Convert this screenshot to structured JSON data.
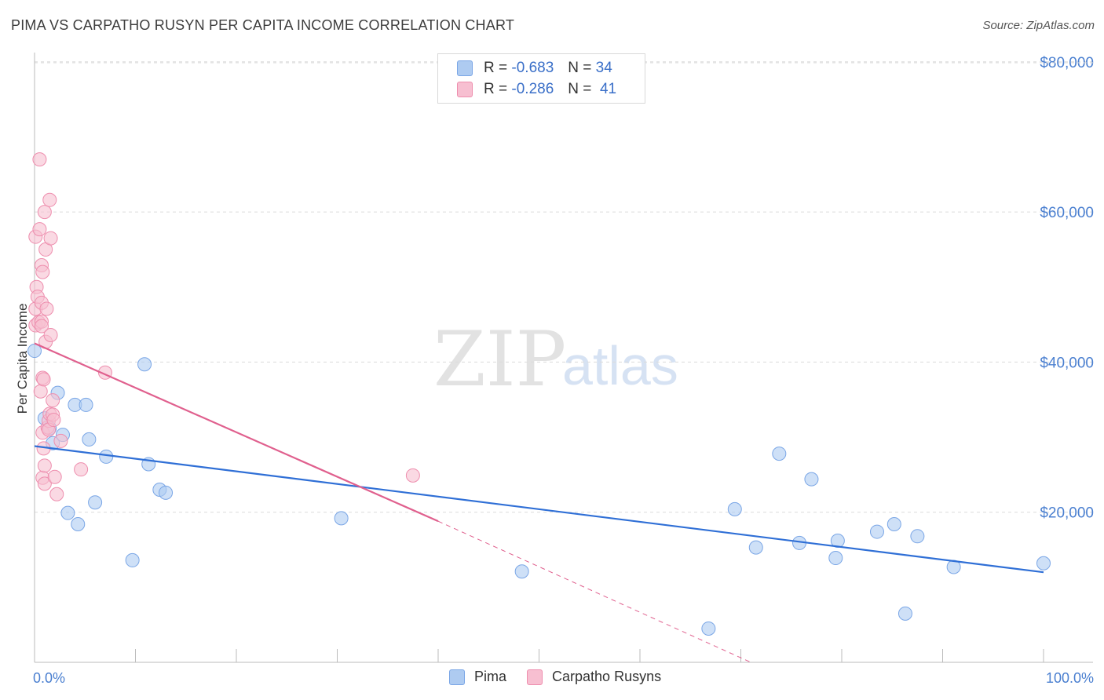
{
  "title": "PIMA VS CARPATHO RUSYN PER CAPITA INCOME CORRELATION CHART",
  "source": "Source: ZipAtlas.com",
  "watermark": {
    "zip": "ZIP",
    "atlas": "atlas"
  },
  "legend": {
    "rows": [
      {
        "r_label": "R =",
        "r_value": "-0.683",
        "n_label": "N =",
        "n_value": "34",
        "color": "#aecbf1",
        "border": "#7aa6e6"
      },
      {
        "r_label": "R =",
        "r_value": "-0.286",
        "n_label": "N =",
        "n_value": "41",
        "color": "#f7bfd1",
        "border": "#ee8eae"
      }
    ]
  },
  "bottom_legend": [
    {
      "label": "Pima",
      "color": "#aecbf1",
      "border": "#7aa6e6"
    },
    {
      "label": "Carpatho Rusyns",
      "color": "#f7bfd1",
      "border": "#ee8eae"
    }
  ],
  "chart_data": {
    "type": "scatter",
    "title": "PIMA VS CARPATHO RUSYN PER CAPITA INCOME CORRELATION CHART",
    "xlabel": "",
    "ylabel": "Per Capita Income",
    "xlim": [
      0,
      100
    ],
    "ylim": [
      0,
      80000
    ],
    "x_tick_labels": [
      "0.0%",
      "100.0%"
    ],
    "y_ticks": [
      20000,
      40000,
      60000,
      80000
    ],
    "y_tick_labels": [
      "$20,000",
      "$40,000",
      "$60,000",
      "$80,000"
    ],
    "grid": true,
    "series": [
      {
        "name": "Pima",
        "color": "#aecbf1",
        "stroke": "#7aa6e6",
        "trend_color": "#2f6fd6",
        "points": [
          [
            0.0,
            41500
          ],
          [
            1.0,
            32500
          ],
          [
            1.5,
            31200
          ],
          [
            1.8,
            29200
          ],
          [
            2.3,
            35900
          ],
          [
            2.8,
            30300
          ],
          [
            3.3,
            19900
          ],
          [
            4.0,
            34300
          ],
          [
            4.3,
            18400
          ],
          [
            5.1,
            34300
          ],
          [
            5.4,
            29700
          ],
          [
            6.0,
            21300
          ],
          [
            7.1,
            27400
          ],
          [
            9.7,
            13600
          ],
          [
            10.9,
            39700
          ],
          [
            11.3,
            26400
          ],
          [
            12.4,
            23000
          ],
          [
            13.0,
            22600
          ],
          [
            30.4,
            19200
          ],
          [
            48.3,
            12100
          ],
          [
            66.8,
            4500
          ],
          [
            69.4,
            20400
          ],
          [
            71.5,
            15300
          ],
          [
            73.8,
            27800
          ],
          [
            75.8,
            15900
          ],
          [
            77.0,
            24400
          ],
          [
            79.4,
            13900
          ],
          [
            79.6,
            16200
          ],
          [
            83.5,
            17400
          ],
          [
            85.2,
            18400
          ],
          [
            86.3,
            6500
          ],
          [
            87.5,
            16800
          ],
          [
            91.1,
            12700
          ],
          [
            100.0,
            13200
          ]
        ],
        "trend": {
          "x": [
            0,
            100
          ],
          "y": [
            28800,
            12000
          ]
        }
      },
      {
        "name": "Carpatho Rusyns",
        "color": "#f7bfd1",
        "stroke": "#ee8eae",
        "trend_color": "#e0608e",
        "points": [
          [
            0.1,
            56700
          ],
          [
            0.1,
            47100
          ],
          [
            0.1,
            44900
          ],
          [
            0.2,
            50000
          ],
          [
            0.3,
            48700
          ],
          [
            0.4,
            45300
          ],
          [
            0.5,
            67000
          ],
          [
            0.5,
            57700
          ],
          [
            0.6,
            36100
          ],
          [
            0.7,
            52900
          ],
          [
            0.7,
            47900
          ],
          [
            0.7,
            45400
          ],
          [
            0.7,
            44800
          ],
          [
            0.8,
            37900
          ],
          [
            0.8,
            30600
          ],
          [
            0.8,
            24600
          ],
          [
            0.8,
            52000
          ],
          [
            0.9,
            37700
          ],
          [
            0.9,
            28500
          ],
          [
            1.0,
            60000
          ],
          [
            1.0,
            23800
          ],
          [
            1.0,
            26200
          ],
          [
            1.1,
            55000
          ],
          [
            1.1,
            42700
          ],
          [
            1.2,
            47100
          ],
          [
            1.3,
            31300
          ],
          [
            1.4,
            32200
          ],
          [
            1.4,
            31000
          ],
          [
            1.5,
            61600
          ],
          [
            1.5,
            33100
          ],
          [
            1.6,
            56500
          ],
          [
            1.6,
            43600
          ],
          [
            1.8,
            34900
          ],
          [
            1.8,
            33000
          ],
          [
            1.9,
            32300
          ],
          [
            2.0,
            24700
          ],
          [
            2.2,
            22400
          ],
          [
            2.6,
            29500
          ],
          [
            4.6,
            25700
          ],
          [
            7.0,
            38600
          ],
          [
            37.5,
            24900
          ]
        ],
        "trend": {
          "x": [
            0,
            40
          ],
          "y": [
            42500,
            18800
          ]
        },
        "trend_dashed": {
          "x": [
            40,
            71
          ],
          "y": [
            18800,
            0
          ]
        }
      }
    ]
  }
}
